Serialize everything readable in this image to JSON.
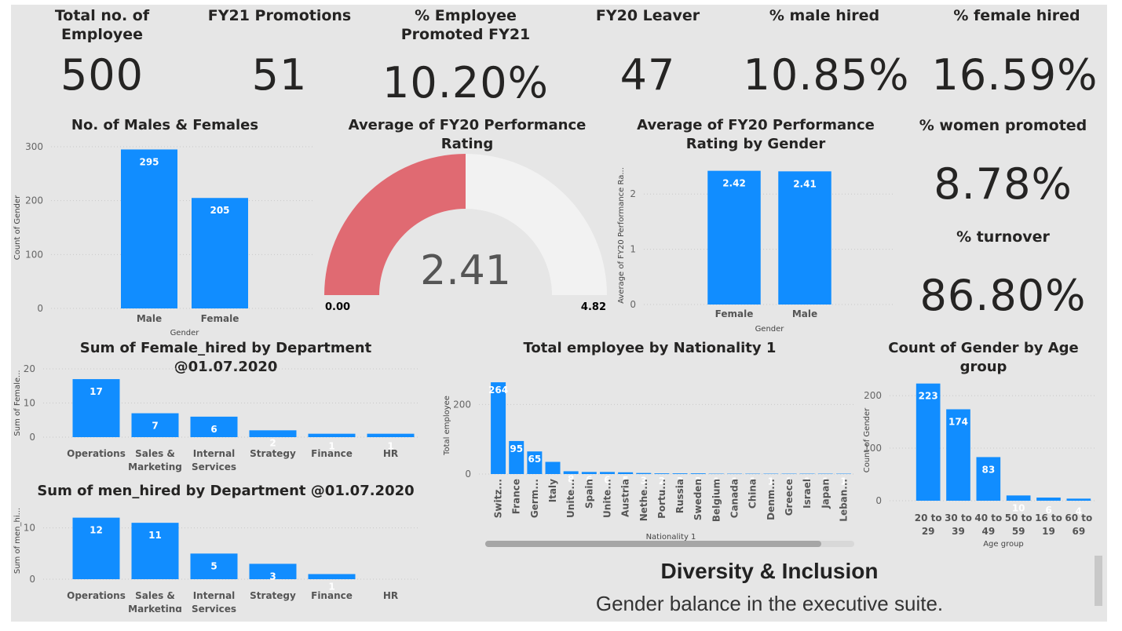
{
  "kpis": [
    {
      "title": "Total no. of Employee",
      "value": "500"
    },
    {
      "title": "FY21 Promotions",
      "value": "51"
    },
    {
      "title": "% Employee Promoted FY21",
      "value": "10.20%"
    },
    {
      "title": "FY20 Leaver",
      "value": "47"
    },
    {
      "title": "% male hired",
      "value": "10.85%"
    },
    {
      "title": "% female hired",
      "value": "16.59%"
    }
  ],
  "side_kpis": [
    {
      "title": "% women promoted",
      "value": "8.78%"
    },
    {
      "title": "% turnover",
      "value": "86.80%"
    }
  ],
  "gauge": {
    "title": "Average of FY20 Performance Rating",
    "value_label": "2.41",
    "min_label": "0.00",
    "max_label": "4.82",
    "fill_fraction": 0.5,
    "fill_color": "#e06a72",
    "track_color": "#f2f2f2"
  },
  "text_box": {
    "heading": "Diversity & Inclusion",
    "subheading": "Gender balance in the executive suite."
  },
  "chart_data": [
    {
      "id": "males_females",
      "type": "bar",
      "title": "No. of Males & Females",
      "xlabel": "Gender",
      "ylabel": "Count of Gender",
      "categories": [
        "Male",
        "Female"
      ],
      "values": [
        295,
        205
      ],
      "value_labels": [
        "295",
        "205"
      ],
      "ylim": [
        0,
        300
      ],
      "yticks": [
        0,
        100,
        200,
        300
      ],
      "color": "#118dff"
    },
    {
      "id": "rating_gender",
      "type": "bar",
      "title": "Average of FY20 Performance Rating by Gender",
      "xlabel": "Gender",
      "ylabel": "Average of FY20 Performance Ra...",
      "categories": [
        "Female",
        "Male"
      ],
      "values": [
        2.42,
        2.41
      ],
      "value_labels": [
        "2.42",
        "2.41"
      ],
      "ylim": [
        0,
        2.5
      ],
      "yticks": [
        0,
        1,
        2
      ],
      "color": "#118dff"
    },
    {
      "id": "female_hired",
      "type": "bar",
      "title": "Sum of Female_hired by Department @01.07.2020",
      "xlabel": "",
      "ylabel": "Sum of Female...",
      "categories": [
        [
          "Operations"
        ],
        [
          "Sales &",
          "Marketing"
        ],
        [
          "Internal",
          "Services"
        ],
        [
          "Strategy"
        ],
        [
          "Finance"
        ],
        [
          "HR"
        ]
      ],
      "values": [
        17,
        7,
        6,
        2,
        1,
        1
      ],
      "value_labels": [
        "17",
        "7",
        "6",
        "2",
        "1",
        "1"
      ],
      "ylim": [
        0,
        20
      ],
      "yticks": [
        0,
        10,
        20
      ],
      "color": "#118dff"
    },
    {
      "id": "men_hired",
      "type": "bar",
      "title": "Sum of men_hired by Department @01.07.2020",
      "xlabel": "",
      "ylabel": "Sum of men_hi...",
      "categories": [
        [
          "Operations"
        ],
        [
          "Sales &",
          "Marketing"
        ],
        [
          "Internal",
          "Services"
        ],
        [
          "Strategy"
        ],
        [
          "Finance"
        ],
        [
          "HR"
        ]
      ],
      "values": [
        12,
        11,
        5,
        3,
        1,
        0
      ],
      "value_labels": [
        "12",
        "11",
        "5",
        "3",
        "1",
        ""
      ],
      "ylim": [
        0,
        15
      ],
      "yticks": [
        0,
        10
      ],
      "color": "#118dff"
    },
    {
      "id": "nationality",
      "type": "bar",
      "title": "Total employee by Nationality 1",
      "xlabel": "Nationality 1",
      "ylabel": "Total employee",
      "categories": [
        "Switz...",
        "France",
        "Germ...",
        "Italy",
        "Unite...",
        "Spain",
        "Unite...",
        "Austria",
        "Nethe...",
        "Portu...",
        "Russia",
        "Sweden",
        "Belgium",
        "Canada",
        "China",
        "Denm...",
        "Greece",
        "Israel",
        "Japan",
        "Leban..."
      ],
      "values": [
        264,
        95,
        65,
        35,
        8,
        6,
        6,
        5,
        3,
        2,
        2,
        2,
        1,
        1,
        1,
        1,
        1,
        1,
        1,
        1
      ],
      "value_labels": [
        "264",
        "95",
        "65",
        "",
        "8",
        "6",
        "6",
        "5",
        "3",
        "2",
        "2",
        "2",
        "1",
        "1",
        "1",
        "1",
        "1",
        "1",
        "1",
        "1"
      ],
      "ylim": [
        0,
        280
      ],
      "yticks": [
        0,
        200
      ],
      "color": "#118dff"
    },
    {
      "id": "age_group",
      "type": "bar",
      "title": "Count of Gender by Age group",
      "xlabel": "Age group",
      "ylabel": "Count of Gender",
      "categories": [
        [
          "20 to",
          "29"
        ],
        [
          "30 to",
          "39"
        ],
        [
          "40 to",
          "49"
        ],
        [
          "50 to",
          "59"
        ],
        [
          "16 to",
          "19"
        ],
        [
          "60 to",
          "69"
        ]
      ],
      "values": [
        223,
        174,
        83,
        10,
        6,
        4
      ],
      "value_labels": [
        "223",
        "174",
        "83",
        "10",
        "6",
        "4"
      ],
      "ylim": [
        0,
        230
      ],
      "yticks": [
        0,
        100,
        200
      ],
      "color": "#118dff"
    }
  ]
}
